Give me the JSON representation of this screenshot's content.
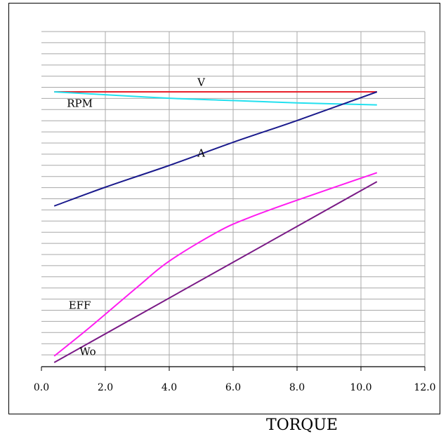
{
  "chart_data": {
    "type": "line",
    "title": "",
    "xlabel": "TORQUE",
    "ylabel": "",
    "xlim": [
      0,
      12
    ],
    "ylim": [
      0,
      100
    ],
    "grid": true,
    "xticks": [
      "0.0",
      "2.0",
      "4.0",
      "6.0",
      "8.0",
      "10.0",
      "12.0"
    ],
    "x_tick_values": [
      0,
      2,
      4,
      6,
      8,
      10,
      12
    ],
    "series": [
      {
        "name": "V",
        "color": "#e8202a",
        "x": [
          0.4,
          10.5
        ],
        "y": [
          93.4,
          93.4
        ]
      },
      {
        "name": "RPM",
        "color": "#22e0ef",
        "x": [
          0.4,
          2.0,
          4.0,
          6.0,
          8.0,
          10.5
        ],
        "y": [
          93.4,
          92.4,
          91.2,
          90.4,
          89.6,
          88.9
        ]
      },
      {
        "name": "A",
        "color": "#1a1a8c",
        "x": [
          0.4,
          2.0,
          4.0,
          6.0,
          8.0,
          10.5
        ],
        "y": [
          54.0,
          60.5,
          68.0,
          76.0,
          83.5,
          93.4
        ]
      },
      {
        "name": "EFF",
        "color": "#ff1cf0",
        "x": [
          0.4,
          1.5,
          3.0,
          4.0,
          5.5,
          6.5,
          8.0,
          10.5
        ],
        "y": [
          2.2,
          12.0,
          26.0,
          35.0,
          45.0,
          50.0,
          56.0,
          65.5
        ]
      },
      {
        "name": "Wo",
        "color": "#7a1a86",
        "x": [
          0.4,
          10.5
        ],
        "y": [
          0.0,
          62.4
        ]
      }
    ],
    "labels": [
      {
        "series": "V",
        "text": "V",
        "x": 5.0,
        "y": 95.5
      },
      {
        "series": "RPM",
        "text": "RPM",
        "x": 1.2,
        "y": 88.2
      },
      {
        "series": "A",
        "text": "A",
        "x": 5.0,
        "y": 71.0
      },
      {
        "series": "EFF",
        "text": "EFF",
        "x": 1.2,
        "y": 18.5
      },
      {
        "series": "Wo",
        "text": "Wo",
        "x": 1.45,
        "y": 2.5
      }
    ]
  }
}
